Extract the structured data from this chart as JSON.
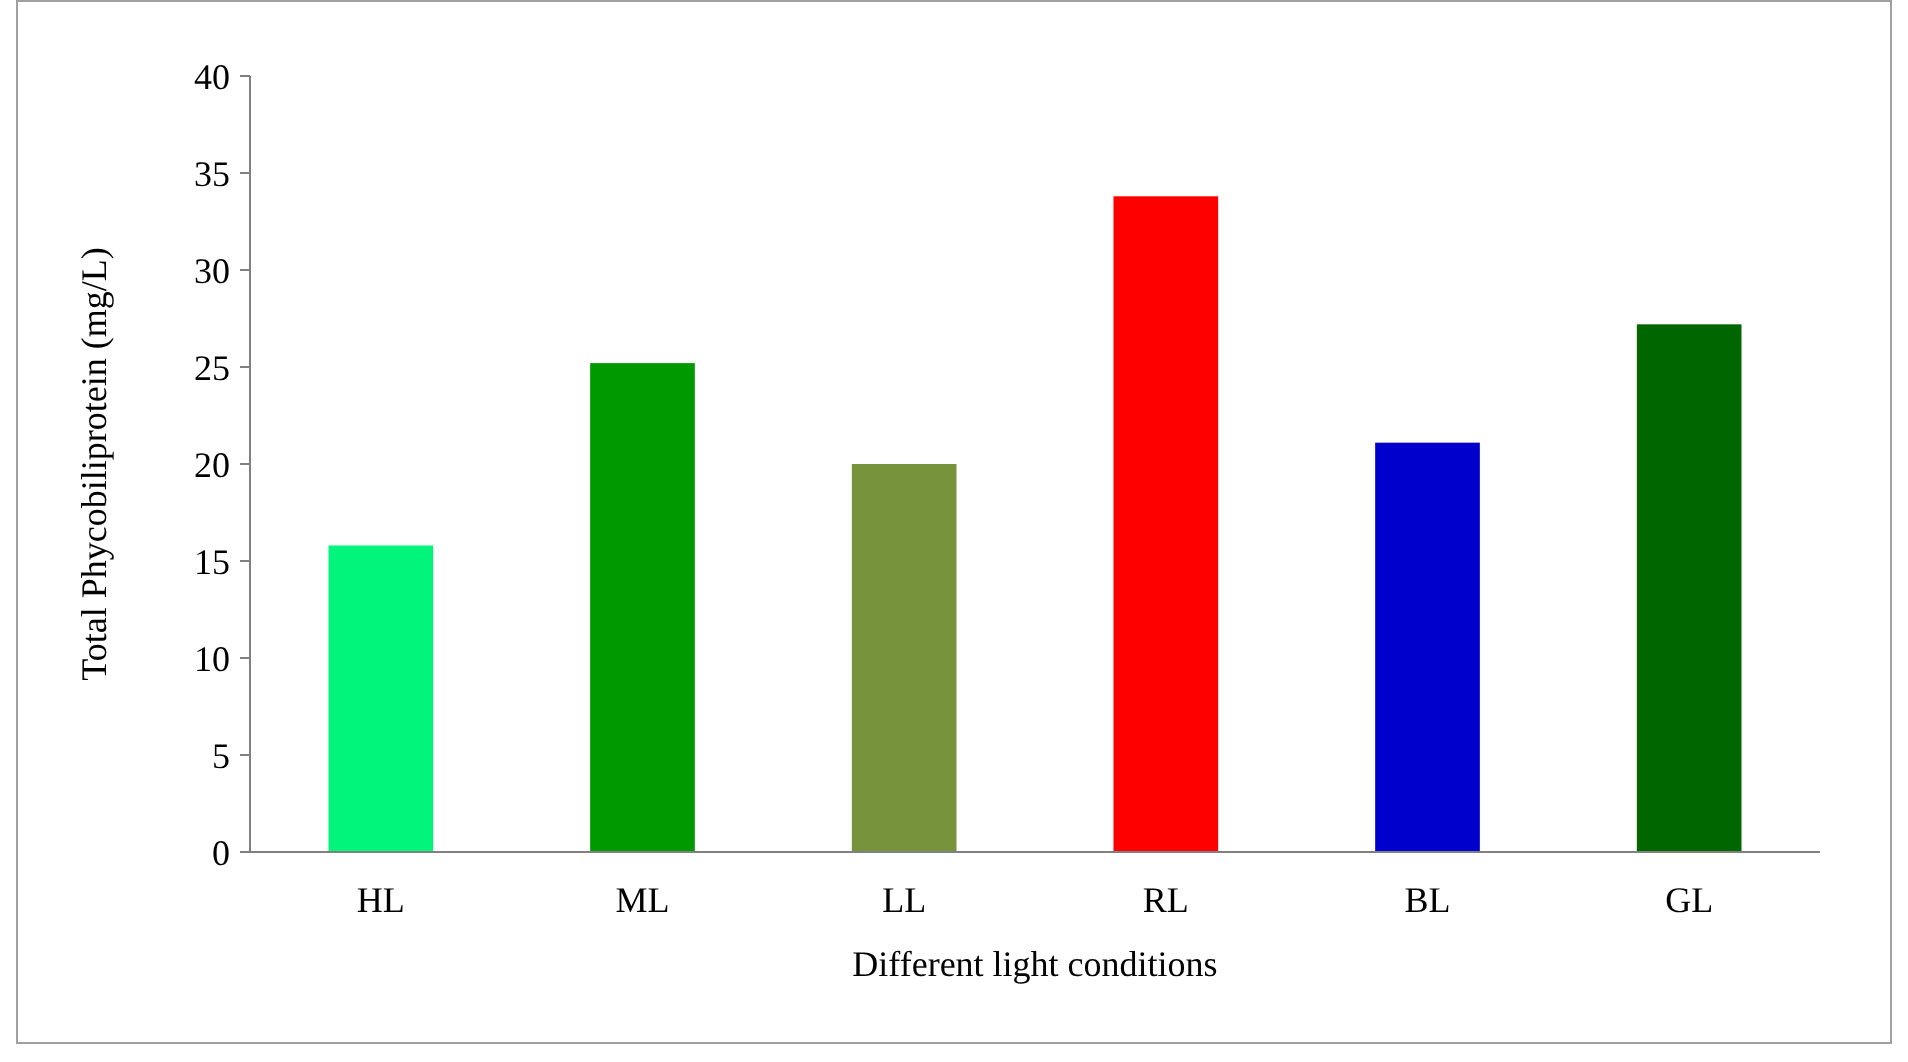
{
  "chart_data": {
    "type": "bar",
    "xlabel": "Different light conditions",
    "ylabel": "Total Phycobiliprotein (mg/L)",
    "categories": [
      "HL",
      "ML",
      "LL",
      "RL",
      "BL",
      "GL"
    ],
    "values": [
      15.8,
      25.2,
      20.0,
      33.8,
      21.1,
      27.2
    ],
    "colors": [
      "#00f57a",
      "#009900",
      "#77933c",
      "#ff0000",
      "#0000cc",
      "#006600"
    ],
    "ylim": [
      0,
      40
    ],
    "yticks": [
      0,
      5,
      10,
      15,
      20,
      25,
      30,
      35,
      40
    ],
    "grid": false
  }
}
